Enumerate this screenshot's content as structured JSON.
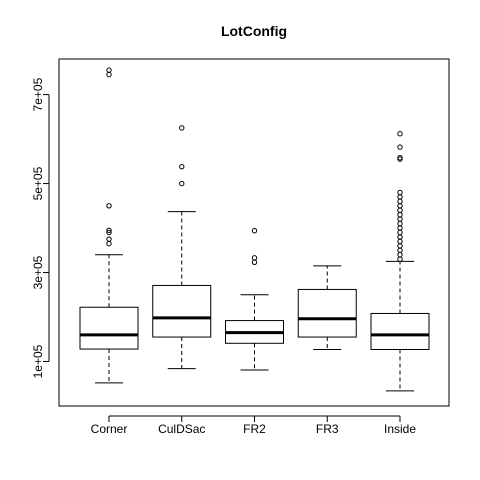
{
  "chart_data": {
    "type": "boxplot",
    "title": "LotConfig",
    "xlabel": "",
    "ylabel": "",
    "categories": [
      "Corner",
      "CulDSac",
      "FR2",
      "FR3",
      "Inside"
    ],
    "ylim": [
      0,
      780000
    ],
    "y_ticks": [
      100000,
      300000,
      500000,
      700000
    ],
    "y_tick_labels": [
      "1e+05",
      "3e+05",
      "5e+05",
      "7e+05"
    ],
    "boxes": [
      {
        "name": "Corner",
        "whisker_low": 52000,
        "q1": 128000,
        "median": 160000,
        "q3": 222000,
        "whisker_high": 340000,
        "outliers": [
          365000,
          375000,
          390000,
          395000,
          450000,
          745000,
          755000
        ]
      },
      {
        "name": "CulDSac",
        "whisker_low": 84000,
        "q1": 155000,
        "median": 198000,
        "q3": 271000,
        "whisker_high": 437000,
        "outliers": [
          500000,
          538000,
          625000
        ]
      },
      {
        "name": "FR2",
        "whisker_low": 81000,
        "q1": 141000,
        "median": 165000,
        "q3": 192000,
        "whisker_high": 250000,
        "outliers": [
          323000,
          333000,
          394000
        ]
      },
      {
        "name": "FR3",
        "whisker_low": 127000,
        "q1": 155000,
        "median": 196000,
        "q3": 262000,
        "whisker_high": 315000,
        "outliers": []
      },
      {
        "name": "Inside",
        "whisker_low": 34000,
        "q1": 127000,
        "median": 160000,
        "q3": 208000,
        "whisker_high": 325000,
        "outliers": [
          330000,
          340000,
          350000,
          360000,
          370000,
          380000,
          390000,
          400000,
          410000,
          420000,
          430000,
          440000,
          450000,
          460000,
          470000,
          480000,
          555000,
          558000,
          582000,
          612000
        ]
      }
    ],
    "grid": false
  }
}
